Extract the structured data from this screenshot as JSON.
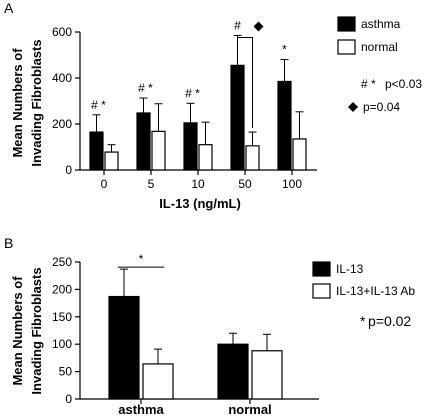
{
  "colors": {
    "series1": "#000000",
    "series2": "#ffffff",
    "stroke": "#000000"
  },
  "chart_data": [
    {
      "type": "bar",
      "panel_label": "A",
      "xlabel": "IL-13 (ng/mL)",
      "ylabel_lines": [
        "Mean Numbers of",
        "Invading Fibroblasts"
      ],
      "ylim": [
        0,
        600
      ],
      "yticks": [
        0,
        200,
        400,
        600
      ],
      "categories": [
        "0",
        "5",
        "10",
        "50",
        "100"
      ],
      "series": [
        {
          "name": "asthma",
          "values": [
            165,
            248,
            205,
            455,
            385
          ],
          "errors": [
            75,
            65,
            85,
            130,
            95
          ]
        },
        {
          "name": "normal",
          "values": [
            78,
            168,
            110,
            105,
            135
          ],
          "errors": [
            32,
            120,
            98,
            60,
            118
          ]
        }
      ],
      "markers": [
        {
          "category": 0,
          "text": "# *"
        },
        {
          "category": 1,
          "text": "# *"
        },
        {
          "category": 2,
          "text": "# *"
        },
        {
          "category": 3,
          "text": "#"
        },
        {
          "category": 4,
          "text": "*"
        }
      ],
      "diamond_bracket_category": 3,
      "annotations": [
        {
          "symbol": "# *",
          "text": "p<0.03"
        },
        {
          "symbol": "◆",
          "text": "p=0.04"
        }
      ]
    },
    {
      "type": "bar",
      "panel_label": "B",
      "xlabel": "",
      "ylabel_lines": [
        "Mean Numbers of",
        "Invading Fibroblasts"
      ],
      "ylim": [
        0,
        250
      ],
      "yticks": [
        0,
        50,
        100,
        150,
        200,
        250
      ],
      "categories": [
        "asthma",
        "normal"
      ],
      "series": [
        {
          "name": "IL-13",
          "values": [
            187,
            100
          ],
          "errors": [
            50,
            20
          ]
        },
        {
          "name": "IL-13+IL-13 Ab",
          "values": [
            64,
            88
          ],
          "errors": [
            27,
            30
          ]
        }
      ],
      "significance_bar": {
        "category": 0,
        "text": "*"
      },
      "annotations": [
        {
          "symbol": "*",
          "text": "p=0.02"
        }
      ]
    }
  ]
}
